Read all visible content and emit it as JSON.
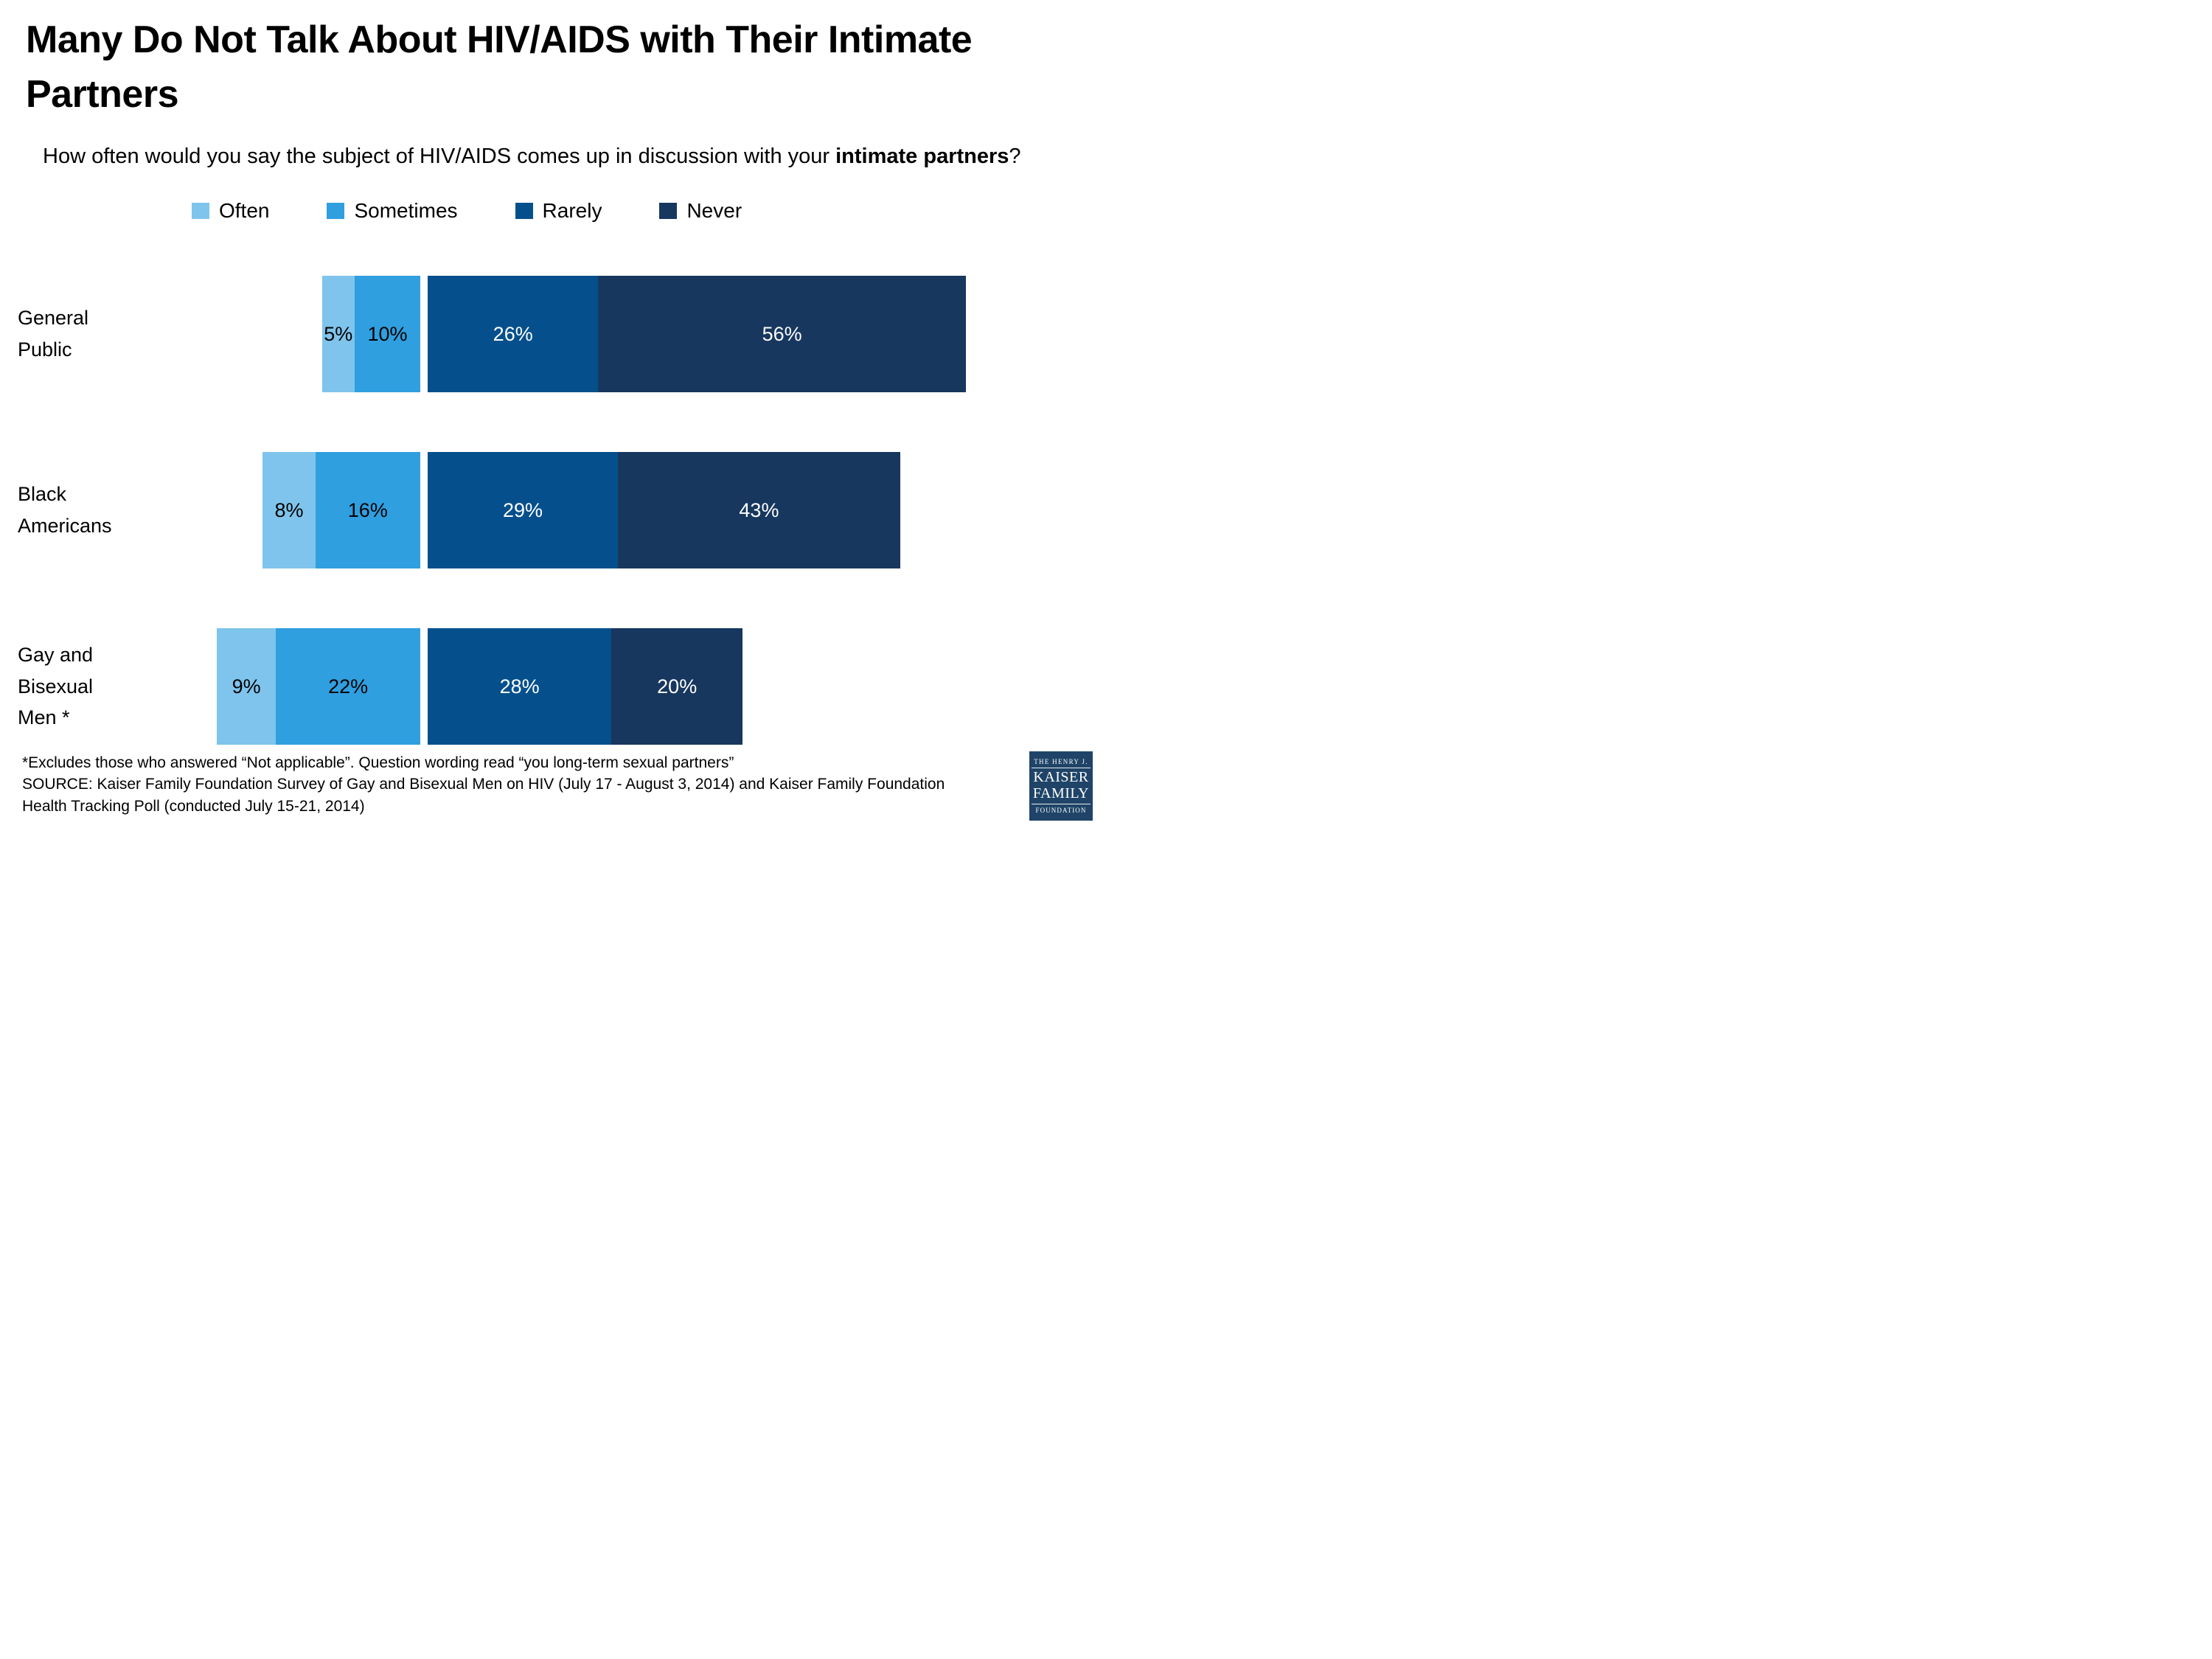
{
  "title_lines": [
    "Many Do Not Talk About HIV/AIDS with Their Intimate",
    "Partners"
  ],
  "subtitle": {
    "prefix": "How often would you say the subject of HIV/AIDS comes up in discussion with your ",
    "bold": "intimate partners",
    "suffix": "?"
  },
  "legend": {
    "items": [
      {
        "label": "Often",
        "color": "#7FC4EC"
      },
      {
        "label": "Sometimes",
        "color": "#2F9FDF"
      },
      {
        "label": "Rarely",
        "color": "#05508C"
      },
      {
        "label": "Never",
        "color": "#17375E"
      }
    ]
  },
  "chart_data": {
    "type": "bar",
    "subtype": "horizontal-diverging-stacked",
    "title": "How often would you say the subject of HIV/AIDS comes up in discussion with your intimate partners?",
    "categories": [
      "General Public",
      "Black Americans",
      "Gay and Bisexual Men *"
    ],
    "series": [
      {
        "name": "Often",
        "color": "#7FC4EC",
        "values": [
          5,
          8,
          9
        ]
      },
      {
        "name": "Sometimes",
        "color": "#2F9FDF",
        "values": [
          10,
          16,
          22
        ]
      },
      {
        "name": "Rarely",
        "color": "#05508C",
        "values": [
          26,
          29,
          28
        ]
      },
      {
        "name": "Never",
        "color": "#17375E",
        "values": [
          56,
          43,
          20
        ]
      }
    ],
    "value_labels": "percent",
    "legend_position": "top",
    "axes": "none",
    "divider": "between Sometimes and Rarely, aligned across rows"
  },
  "rows": [
    {
      "label_lines": [
        "General",
        "Public"
      ],
      "segments": [
        {
          "series": "Often",
          "pct": 5,
          "label": "5%",
          "color": "#7FC4EC",
          "text_color": "#000000"
        },
        {
          "series": "Sometimes",
          "pct": 10,
          "label": "10%",
          "color": "#2F9FDF",
          "text_color": "#000000"
        },
        {
          "series": "Rarely",
          "pct": 26,
          "label": "26%",
          "color": "#05508C",
          "text_color": "#ffffff"
        },
        {
          "series": "Never",
          "pct": 56,
          "label": "56%",
          "color": "#17375E",
          "text_color": "#ffffff"
        }
      ]
    },
    {
      "label_lines": [
        "Black",
        "Americans"
      ],
      "segments": [
        {
          "series": "Often",
          "pct": 8,
          "label": "8%",
          "color": "#7FC4EC",
          "text_color": "#000000"
        },
        {
          "series": "Sometimes",
          "pct": 16,
          "label": "16%",
          "color": "#2F9FDF",
          "text_color": "#000000"
        },
        {
          "series": "Rarely",
          "pct": 29,
          "label": "29%",
          "color": "#05508C",
          "text_color": "#ffffff"
        },
        {
          "series": "Never",
          "pct": 43,
          "label": "43%",
          "color": "#17375E",
          "text_color": "#ffffff"
        }
      ]
    },
    {
      "label_lines": [
        "Gay and",
        "Bisexual",
        "Men *"
      ],
      "segments": [
        {
          "series": "Often",
          "pct": 9,
          "label": "9%",
          "color": "#7FC4EC",
          "text_color": "#000000"
        },
        {
          "series": "Sometimes",
          "pct": 22,
          "label": "22%",
          "color": "#2F9FDF",
          "text_color": "#000000"
        },
        {
          "series": "Rarely",
          "pct": 28,
          "label": "28%",
          "color": "#05508C",
          "text_color": "#ffffff"
        },
        {
          "series": "Never",
          "pct": 20,
          "label": "20%",
          "color": "#17375E",
          "text_color": "#ffffff"
        }
      ]
    }
  ],
  "footnote": {
    "lines": [
      "*Excludes those who answered “Not applicable”. Question wording read “you long-term sexual partners”",
      "SOURCE: Kaiser Family Foundation Survey of Gay and Bisexual Men on HIV (July 17 - August 3, 2014) and Kaiser Family Foundation",
      "Health Tracking Poll (conducted July 15-21, 2014)"
    ]
  },
  "logo": {
    "top": "THE HENRY J.",
    "name1": "KAISER",
    "name2": "FAMILY",
    "bottom": "FOUNDATION",
    "background": "#1F4468"
  }
}
